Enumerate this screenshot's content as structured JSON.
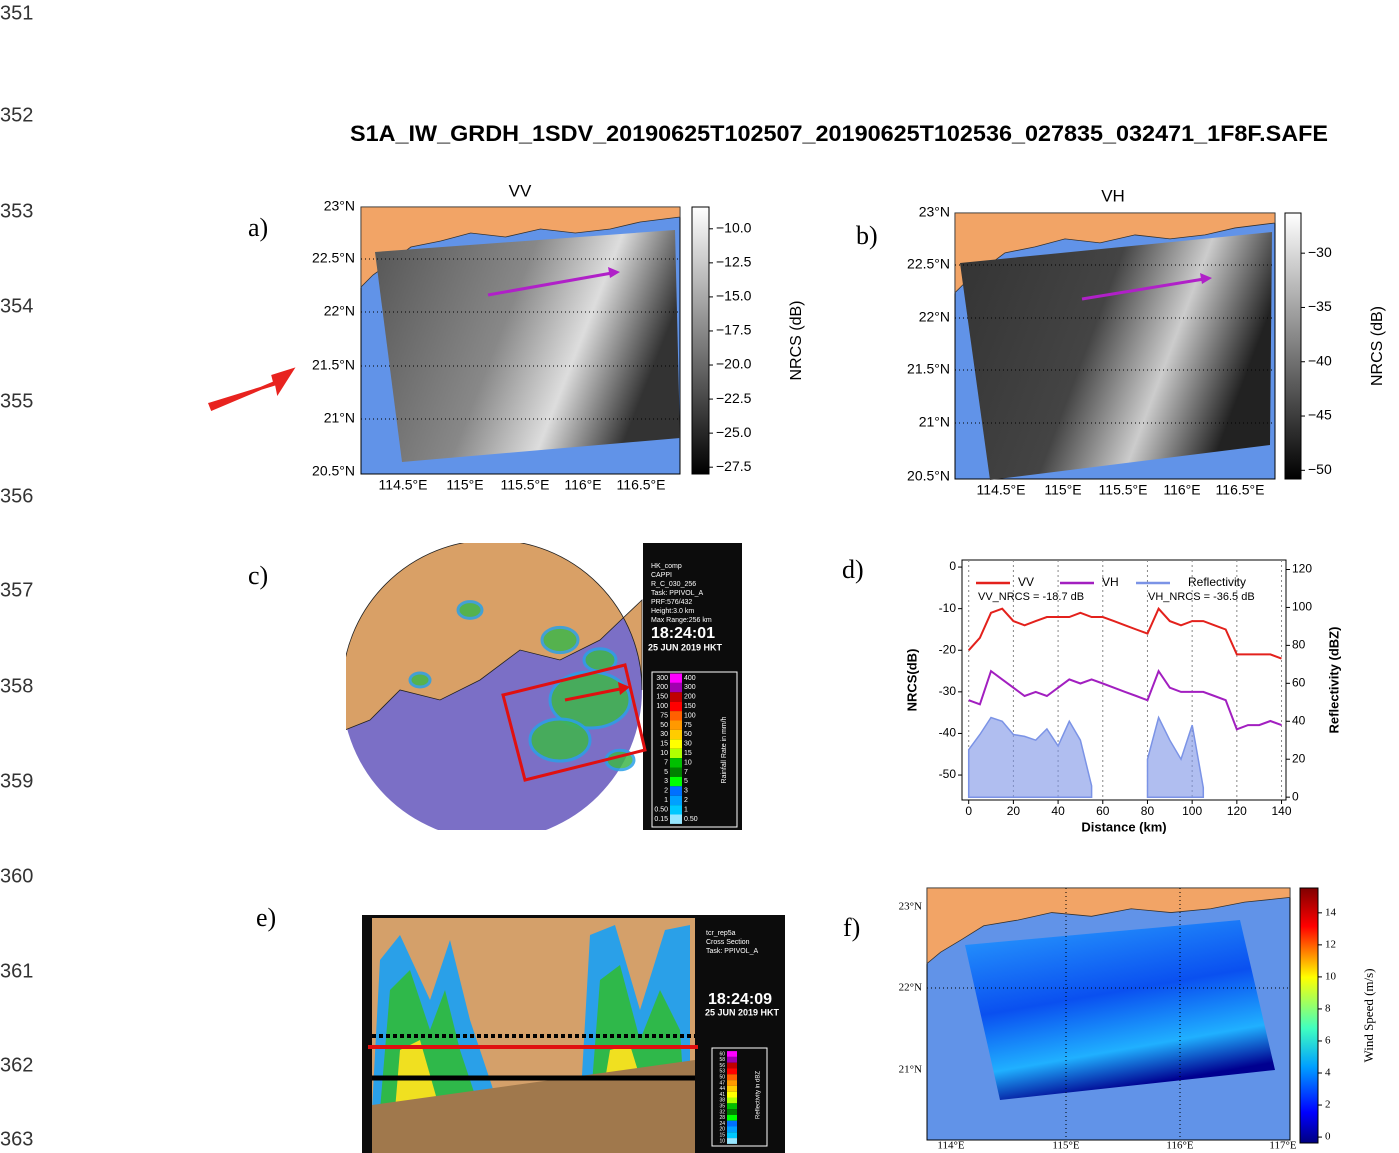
{
  "document": {
    "line_numbers": [
      "351",
      "352",
      "353",
      "354",
      "355",
      "356",
      "357",
      "358",
      "359",
      "360",
      "361",
      "362",
      "363"
    ],
    "title": "S1A_IW_GRDH_1SDV_20190625T102507_20190625T102536_027835_032471_1F8F.SAFE",
    "panels": [
      {
        "label": "a)",
        "title": "VV",
        "lat_labels": [
          "23°N",
          "22.5°N",
          "22°N",
          "21.5°N",
          "21°N",
          "20.5°N"
        ],
        "lon_labels": [
          "114.5°E",
          "115°E",
          "115.5°E",
          "116°E",
          "116.5°E"
        ],
        "colorbar": {
          "label": "NRCS (dB)",
          "lim": [
            -28,
            -8.4
          ],
          "ticks": [
            {
              "value": -10,
              "label": "−10.0"
            },
            {
              "value": -12.5,
              "label": "−12.5"
            },
            {
              "value": -15,
              "label": "−15.0"
            },
            {
              "value": -17.5,
              "label": "−17.5"
            },
            {
              "value": -20,
              "label": "−20.0"
            },
            {
              "value": -22.5,
              "label": "−22.5"
            },
            {
              "value": -25,
              "label": "−25.0"
            },
            {
              "value": -27.5,
              "label": "−27.5"
            }
          ]
        }
      },
      {
        "label": "b)",
        "title": "VH",
        "lat_labels": [
          "23°N",
          "22.5°N",
          "22°N",
          "21.5°N",
          "21°N",
          "20.5°N"
        ],
        "lon_labels": [
          "114.5°E",
          "115°E",
          "115.5°E",
          "116°E",
          "116.5°E"
        ],
        "colorbar": {
          "label": "NRCS (dB)",
          "lim": [
            -50.8,
            -26.3
          ],
          "ticks": [
            {
              "value": -30,
              "label": "−30"
            },
            {
              "value": -35,
              "label": "−35"
            },
            {
              "value": -40,
              "label": "−40"
            },
            {
              "value": -45,
              "label": "−45"
            },
            {
              "value": -50,
              "label": "−50"
            }
          ]
        }
      },
      {
        "label": "c)",
        "info": [
          "HK_comp",
          "CAPPI",
          "R_C_030_256",
          "Task: PPIVOL_A",
          "PRF:576/432",
          "Height:3.0 km",
          "Max Range:256 km"
        ],
        "time": "18:24:01",
        "date": "25 JUN 2019 HKT",
        "scale_title": "Rainfall Rate in mm/h",
        "scale_left": [
          "300",
          "200",
          "150",
          "100",
          "75",
          "50",
          "30",
          "15",
          "10",
          "7",
          "5",
          "3",
          "2",
          "1",
          "0.50",
          "0.15"
        ],
        "scale_right": [
          "400",
          "300",
          "200",
          "150",
          "100",
          "75",
          "50",
          "30",
          "15",
          "10",
          "7",
          "5",
          "3",
          "2",
          "1",
          "0.50"
        ]
      },
      {
        "label": "d)"
      },
      {
        "label": "e)",
        "info": [
          "tcr_rep5a",
          "Cross Section",
          "Task: PPIVOL_A"
        ],
        "time": "18:24:09",
        "date": "25 JUN 2019 HKT",
        "scale_title": "Reflectivity in dBZ",
        "scale_left": [
          "60",
          "58",
          "56",
          "53",
          "50",
          "47",
          "44",
          "41",
          "38",
          "35",
          "32",
          "28",
          "24",
          "20",
          "15",
          "10"
        ]
      },
      {
        "label": "f)",
        "lat_labels": [
          "23°N",
          "22°N",
          "21°N"
        ],
        "lon_labels": [
          "114°E",
          "115°E",
          "116°E",
          "117°E"
        ],
        "colorbar": {
          "label": "Wind Speed (m/s)",
          "lim": [
            -0.37,
            15.55
          ],
          "ticks": [
            0,
            2,
            4,
            6,
            8,
            10,
            12,
            14
          ]
        }
      }
    ]
  },
  "chart_data": {
    "type": "line",
    "x": [
      0,
      5,
      10,
      15,
      20,
      25,
      30,
      35,
      40,
      45,
      50,
      55,
      60,
      65,
      70,
      75,
      80,
      85,
      90,
      95,
      100,
      105,
      110,
      115,
      120,
      125,
      130,
      135,
      140
    ],
    "series": [
      {
        "name": "VV",
        "color": "#e3211c",
        "values": [
          -20,
          -17,
          -11,
          -10,
          -13,
          -14,
          -13,
          -12,
          -12,
          -12,
          -11,
          -12,
          -12,
          -13,
          -14,
          -15,
          -16,
          -10,
          -13,
          -14,
          -13,
          -13,
          -14,
          -15,
          -21,
          -21,
          -21,
          -21,
          -22
        ]
      },
      {
        "name": "VH",
        "color": "#a21fc0",
        "values": [
          -32,
          -33,
          -25,
          -27,
          -29,
          -31,
          -30,
          -31,
          -29,
          -27,
          -28,
          -27,
          -28,
          -29,
          -30,
          -31,
          -32,
          -25,
          -29,
          -30,
          -30,
          -30,
          -31,
          -32,
          -39,
          -38,
          -38,
          -37,
          -38
        ]
      },
      {
        "name": "Reflectivity",
        "color": "#7b93e6",
        "axis": "y2",
        "values": [
          25,
          33,
          42,
          40,
          33,
          32,
          30,
          36,
          27,
          40,
          30,
          6,
          null,
          null,
          null,
          null,
          20,
          42,
          30,
          20,
          38,
          5,
          null,
          null,
          null,
          null,
          null,
          null,
          null
        ]
      }
    ],
    "annotations": [
      "VV_NRCS = -18.7 dB",
      "VH_NRCS = -36.5 dB"
    ],
    "xlabel": "Distance (km)",
    "ylabel": "NRCS(dB)",
    "y2label": "Reflectivity (dBZ)",
    "xlim": [
      -3,
      142
    ],
    "ylim": [
      -56,
      1.7
    ],
    "y2lim": [
      -1.5,
      125
    ],
    "xticks": [
      0,
      20,
      40,
      60,
      80,
      100,
      120,
      140
    ],
    "yticks": [
      0,
      -10,
      -20,
      -30,
      -40,
      -50
    ],
    "y2ticks": [
      0,
      20,
      40,
      60,
      80,
      100,
      120
    ],
    "grid": true
  }
}
